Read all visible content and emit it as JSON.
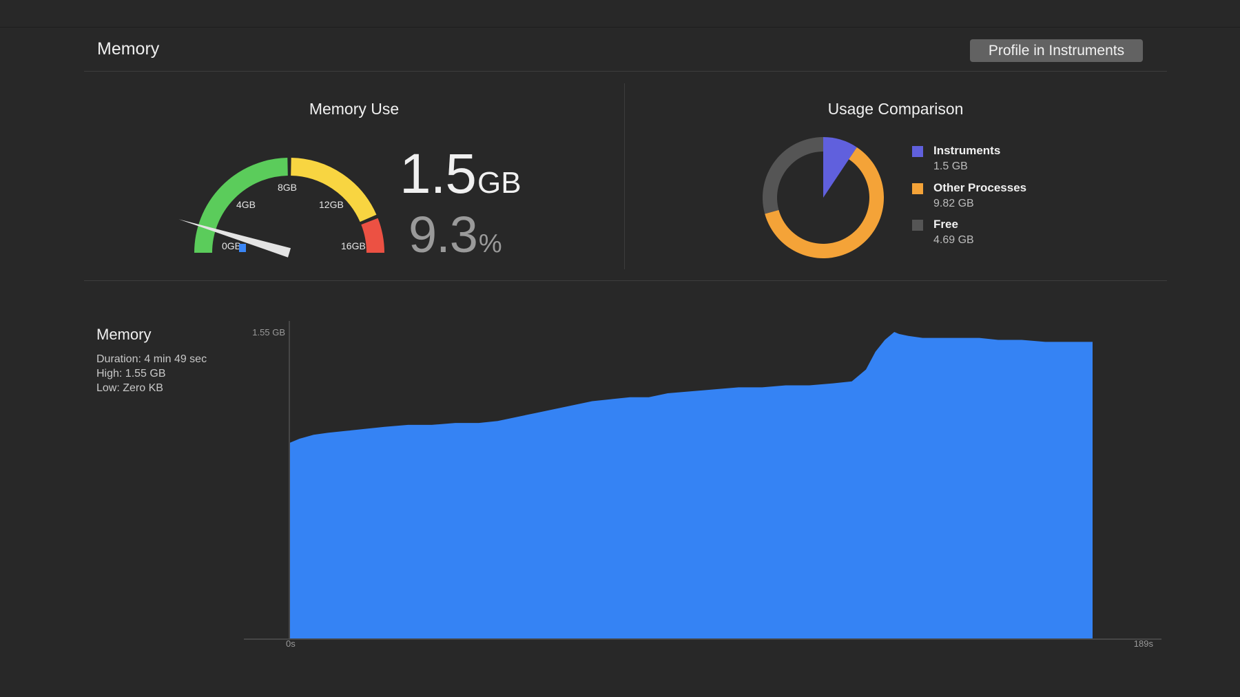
{
  "header": {
    "title": "Memory",
    "profile_button_label": "Profile in Instruments"
  },
  "memory_use": {
    "title": "Memory Use",
    "gauge": {
      "max_gb": 16,
      "needle_value_gb": 1.5,
      "ticks": [
        "0GB",
        "4GB",
        "8GB",
        "12GB",
        "16GB"
      ],
      "zone_colors": {
        "green": "#5bcc5b",
        "yellow": "#f8d541",
        "red": "#ec5143"
      },
      "marker_color": "#3a86f6"
    },
    "value_number": "1.5",
    "value_unit": "GB",
    "percent_number": "9.3",
    "percent_unit": "%"
  },
  "usage_comparison": {
    "title": "Usage Comparison",
    "legend": [
      {
        "name": "Instruments",
        "value": "1.5 GB",
        "color": "#6060dd"
      },
      {
        "name": "Other Processes",
        "value": "9.82 GB",
        "color": "#f4a338"
      },
      {
        "name": "Free",
        "value": "4.69 GB",
        "color": "#555555"
      }
    ]
  },
  "memory_graph": {
    "title": "Memory",
    "duration": "Duration: 4 min 49 sec",
    "high": "High: 1.55 GB",
    "low": "Low: Zero KB"
  },
  "chart_data": {
    "type": "area",
    "series": [
      {
        "color": "#3583f4",
        "x": [
          0,
          2,
          5,
          8,
          12,
          16,
          20,
          25,
          30,
          35,
          40,
          44,
          48,
          52,
          56,
          60,
          64,
          68,
          72,
          76,
          80,
          85,
          90,
          95,
          100,
          105,
          110,
          115,
          119,
          122,
          124,
          126,
          127,
          128,
          129,
          131,
          134,
          138,
          142,
          146,
          150,
          155,
          160,
          165,
          170,
          169
        ],
        "y": [
          0.99,
          1.01,
          1.03,
          1.04,
          1.05,
          1.06,
          1.07,
          1.08,
          1.08,
          1.09,
          1.09,
          1.1,
          1.12,
          1.14,
          1.16,
          1.18,
          1.2,
          1.21,
          1.22,
          1.22,
          1.24,
          1.25,
          1.26,
          1.27,
          1.27,
          1.28,
          1.28,
          1.29,
          1.3,
          1.36,
          1.45,
          1.51,
          1.53,
          1.55,
          1.54,
          1.53,
          1.52,
          1.52,
          1.52,
          1.52,
          1.51,
          1.51,
          1.5,
          1.5,
          1.5,
          1.5
        ]
      }
    ],
    "ylim": [
      0,
      1.55
    ],
    "y_tick_labels": [
      "1.55 GB"
    ],
    "x_tick_labels": [
      "0s",
      "189s"
    ],
    "grid": false
  }
}
